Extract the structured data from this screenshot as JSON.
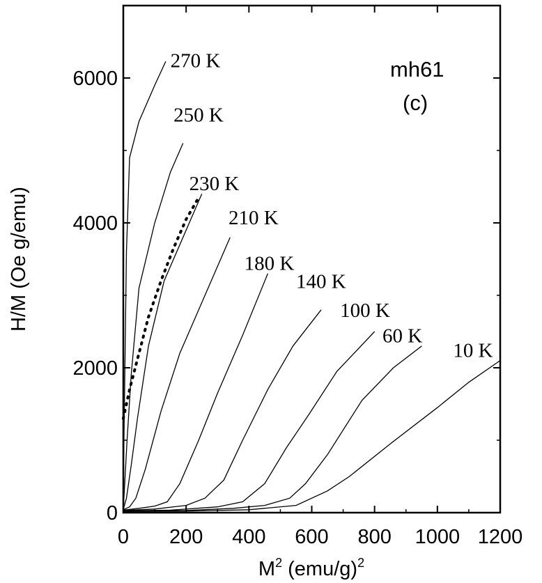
{
  "chart_data": {
    "type": "line",
    "title": "",
    "xlabel_main": "M",
    "xlabel_sup": "2",
    "xlabel_rest": " (emu/g)",
    "xlabel_sup2": "2",
    "ylabel": "H/M (Oe g/emu)",
    "xlim": [
      0,
      1200
    ],
    "ylim": [
      0,
      7000
    ],
    "xticks": [
      0,
      200,
      400,
      600,
      800,
      1000,
      1200
    ],
    "xticklabels": [
      "0",
      "200",
      "400",
      "600",
      "800",
      "1000",
      "1200"
    ],
    "yticks": [
      0,
      2000,
      4000,
      6000
    ],
    "yticklabels": [
      "0",
      "2000",
      "4000",
      "6000"
    ],
    "annotations": [
      "mh61",
      "(c)"
    ],
    "series": [
      {
        "name": "270 K",
        "label_pos": [
          150,
          6150
        ],
        "points": [
          [
            0,
            70
          ],
          [
            2,
            1000
          ],
          [
            5,
            2000
          ],
          [
            10,
            3600
          ],
          [
            20,
            4900
          ],
          [
            50,
            5400
          ],
          [
            100,
            5900
          ],
          [
            135,
            6230
          ]
        ]
      },
      {
        "name": "250 K",
        "label_pos": [
          160,
          5400
        ],
        "points": [
          [
            0,
            55
          ],
          [
            5,
            450
          ],
          [
            12,
            1000
          ],
          [
            25,
            1900
          ],
          [
            50,
            3100
          ],
          [
            100,
            4000
          ],
          [
            150,
            4700
          ],
          [
            190,
            5100
          ]
        ]
      },
      {
        "name": "230 K",
        "label_pos": [
          210,
          4450
        ],
        "points": [
          [
            0,
            45
          ],
          [
            10,
            200
          ],
          [
            25,
            650
          ],
          [
            45,
            1300
          ],
          [
            80,
            2300
          ],
          [
            130,
            3200
          ],
          [
            200,
            3900
          ],
          [
            250,
            4400
          ]
        ]
      },
      {
        "name": "210 K",
        "label_pos": [
          335,
          3980
        ],
        "points": [
          [
            0,
            40
          ],
          [
            20,
            80
          ],
          [
            40,
            200
          ],
          [
            70,
            600
          ],
          [
            120,
            1400
          ],
          [
            180,
            2200
          ],
          [
            250,
            2900
          ],
          [
            340,
            3800
          ]
        ]
      },
      {
        "name": "180 K",
        "label_pos": [
          385,
          3350
        ],
        "points": [
          [
            0,
            35
          ],
          [
            50,
            60
          ],
          [
            100,
            90
          ],
          [
            140,
            150
          ],
          [
            180,
            400
          ],
          [
            240,
            1000
          ],
          [
            300,
            1650
          ],
          [
            380,
            2450
          ],
          [
            460,
            3300
          ]
        ]
      },
      {
        "name": "140 K",
        "label_pos": [
          550,
          3100
        ],
        "points": [
          [
            0,
            30
          ],
          [
            100,
            50
          ],
          [
            200,
            100
          ],
          [
            260,
            200
          ],
          [
            320,
            450
          ],
          [
            380,
            1000
          ],
          [
            460,
            1700
          ],
          [
            540,
            2300
          ],
          [
            630,
            2800
          ]
        ]
      },
      {
        "name": "100 K",
        "label_pos": [
          690,
          2700
        ],
        "points": [
          [
            0,
            25
          ],
          [
            150,
            35
          ],
          [
            300,
            80
          ],
          [
            380,
            150
          ],
          [
            450,
            400
          ],
          [
            520,
            900
          ],
          [
            590,
            1350
          ],
          [
            680,
            1950
          ],
          [
            800,
            2500
          ]
        ]
      },
      {
        "name": "60 K",
        "label_pos": [
          825,
          2350
        ],
        "points": [
          [
            0,
            20
          ],
          [
            200,
            30
          ],
          [
            350,
            60
          ],
          [
            450,
            100
          ],
          [
            530,
            200
          ],
          [
            580,
            400
          ],
          [
            650,
            800
          ],
          [
            760,
            1550
          ],
          [
            860,
            2000
          ],
          [
            950,
            2300
          ]
        ]
      },
      {
        "name": "10 K",
        "label_pos": [
          1050,
          2150
        ],
        "points": [
          [
            0,
            15
          ],
          [
            200,
            20
          ],
          [
            400,
            40
          ],
          [
            550,
            100
          ],
          [
            650,
            300
          ],
          [
            720,
            500
          ],
          [
            850,
            950
          ],
          [
            1000,
            1450
          ],
          [
            1100,
            1800
          ],
          [
            1200,
            2100
          ]
        ]
      }
    ],
    "dotted_series": {
      "points": [
        [
          0,
          1300
        ],
        [
          20,
          1700
        ],
        [
          50,
          2200
        ],
        [
          80,
          2700
        ],
        [
          120,
          3200
        ],
        [
          160,
          3650
        ],
        [
          200,
          4050
        ],
        [
          240,
          4350
        ]
      ]
    }
  }
}
